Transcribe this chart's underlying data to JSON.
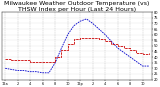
{
  "title": "Milwaukee Weather Outdoor Temperature (vs) THSW Index per Hour (Last 24 Hours)",
  "title_fontsize": 4.5,
  "background_color": "#ffffff",
  "grid_color": "#aaaaaa",
  "xlabel_fontsize": 3.5,
  "ylabel_fontsize": 3.5,
  "ylim": [
    20,
    80
  ],
  "yticks": [
    20,
    25,
    30,
    35,
    40,
    45,
    50,
    55,
    60,
    65,
    70,
    75,
    80
  ],
  "hours": [
    0,
    1,
    2,
    3,
    4,
    5,
    6,
    7,
    8,
    9,
    10,
    11,
    12,
    13,
    14,
    15,
    16,
    17,
    18,
    19,
    20,
    21,
    22,
    23
  ],
  "temp": [
    38,
    37,
    37,
    37,
    36,
    36,
    36,
    36,
    40,
    46,
    52,
    56,
    57,
    57,
    57,
    56,
    54,
    52,
    50,
    48,
    46,
    44,
    43,
    44
  ],
  "thsw": [
    30,
    29,
    28,
    28,
    27,
    27,
    26,
    26,
    35,
    48,
    60,
    68,
    72,
    74,
    70,
    65,
    60,
    54,
    48,
    44,
    40,
    36,
    32,
    32
  ],
  "temp_color": "#cc0000",
  "thsw_color": "#0000cc",
  "xtick_labels": [
    "12a",
    "",
    "",
    "",
    "2",
    "",
    "",
    "",
    "4",
    "",
    "",
    "",
    "6",
    "",
    "",
    "",
    "8",
    "",
    "",
    "",
    "10",
    "",
    "",
    "",
    "12p",
    "",
    "",
    "",
    "2",
    "",
    "",
    "",
    "4",
    "",
    "",
    "",
    "6",
    "",
    "",
    "",
    "8",
    "",
    "",
    "",
    "10",
    "",
    "",
    "",
    ""
  ]
}
